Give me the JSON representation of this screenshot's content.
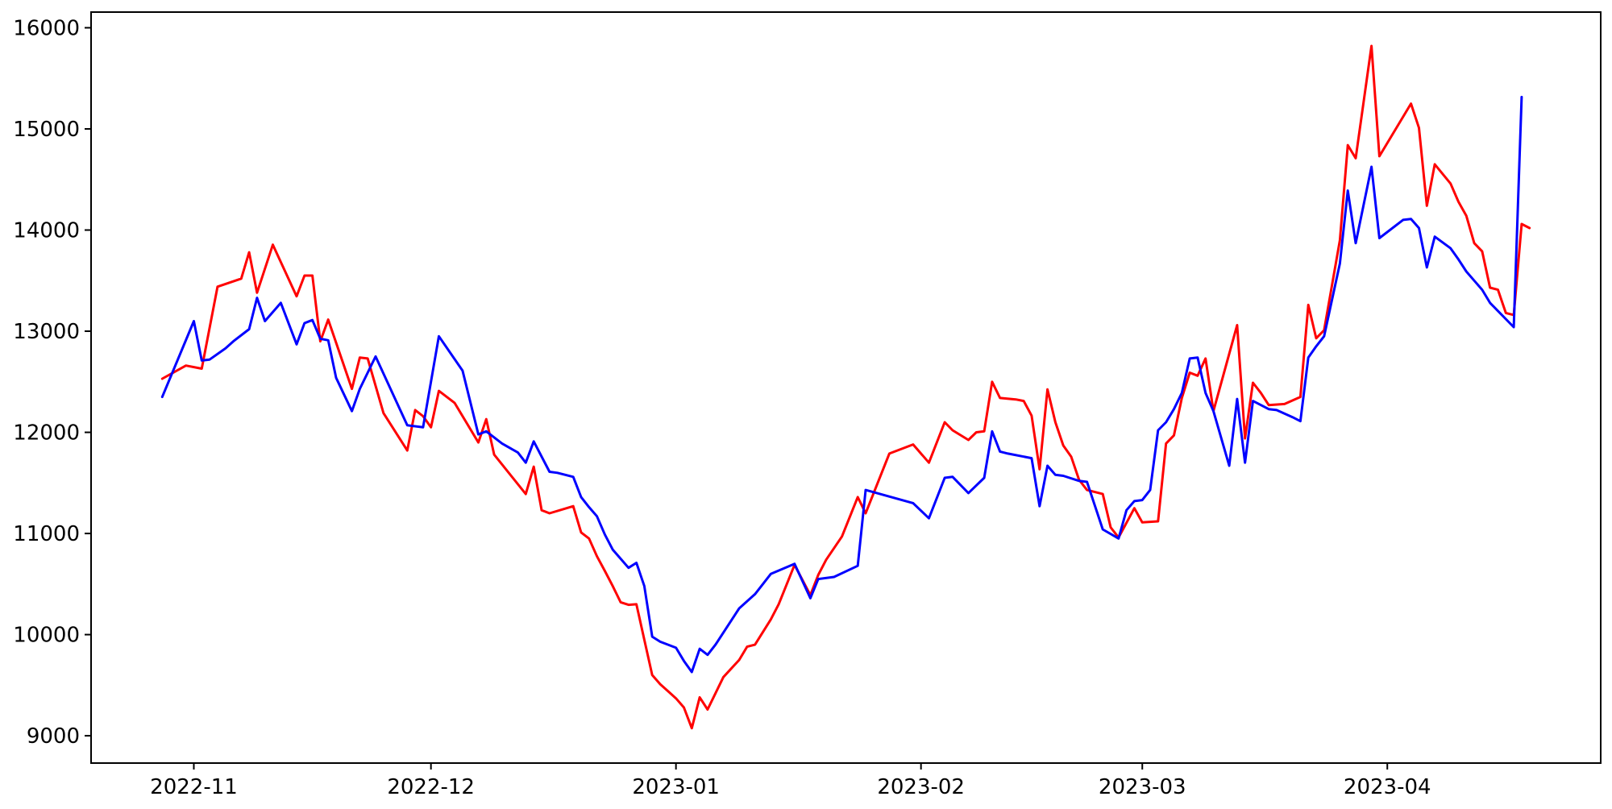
{
  "figure": {
    "background": "#ffffff",
    "frame_color": "#000000"
  },
  "chart_data": {
    "type": "line",
    "title": "",
    "xlabel": "",
    "ylabel": "",
    "grid": false,
    "legend": null,
    "xlim": [
      "2022-10-19",
      "2023-04-28"
    ],
    "ylim": [
      8730,
      16155
    ],
    "y_ticks": [
      9000,
      10000,
      11000,
      12000,
      13000,
      14000,
      15000,
      16000
    ],
    "x_ticks": [
      {
        "label": "2022-11",
        "date": "2022-11-01"
      },
      {
        "label": "2022-12",
        "date": "2022-12-01"
      },
      {
        "label": "2023-01",
        "date": "2023-01-01"
      },
      {
        "label": "2023-02",
        "date": "2023-02-01"
      },
      {
        "label": "2023-03",
        "date": "2023-03-01"
      },
      {
        "label": "2023-04",
        "date": "2023-04-01"
      }
    ],
    "series": [
      {
        "name": "red-series",
        "color": "#ff0000",
        "points": [
          [
            "2022-10-28",
            12530
          ],
          [
            "2022-10-31",
            12660
          ],
          [
            "2022-11-02",
            12630
          ],
          [
            "2022-11-04",
            13440
          ],
          [
            "2022-11-07",
            13520
          ],
          [
            "2022-11-08",
            13780
          ],
          [
            "2022-11-09",
            13380
          ],
          [
            "2022-11-11",
            13855
          ],
          [
            "2022-11-14",
            13345
          ],
          [
            "2022-11-15",
            13550
          ],
          [
            "2022-11-16",
            13550
          ],
          [
            "2022-11-17",
            12900
          ],
          [
            "2022-11-18",
            13115
          ],
          [
            "2022-11-21",
            12430
          ],
          [
            "2022-11-22",
            12740
          ],
          [
            "2022-11-23",
            12730
          ],
          [
            "2022-11-25",
            12190
          ],
          [
            "2022-11-28",
            11820
          ],
          [
            "2022-11-29",
            12220
          ],
          [
            "2022-11-30",
            12160
          ],
          [
            "2022-12-01",
            12050
          ],
          [
            "2022-12-02",
            12410
          ],
          [
            "2022-12-04",
            12290
          ],
          [
            "2022-12-07",
            11900
          ],
          [
            "2022-12-08",
            12130
          ],
          [
            "2022-12-09",
            11780
          ],
          [
            "2022-12-13",
            11390
          ],
          [
            "2022-12-14",
            11660
          ],
          [
            "2022-12-15",
            11230
          ],
          [
            "2022-12-16",
            11200
          ],
          [
            "2022-12-19",
            11270
          ],
          [
            "2022-12-20",
            11010
          ],
          [
            "2022-12-21",
            10950
          ],
          [
            "2022-12-22",
            10775
          ],
          [
            "2022-12-23",
            10630
          ],
          [
            "2022-12-24",
            10480
          ],
          [
            "2022-12-25",
            10320
          ],
          [
            "2022-12-26",
            10295
          ],
          [
            "2022-12-27",
            10300
          ],
          [
            "2022-12-28",
            9950
          ],
          [
            "2022-12-29",
            9600
          ],
          [
            "2022-12-30",
            9510
          ],
          [
            "2022-12-31",
            9440
          ],
          [
            "2023-01-01",
            9370
          ],
          [
            "2023-01-02",
            9280
          ],
          [
            "2023-01-03",
            9075
          ],
          [
            "2023-01-04",
            9380
          ],
          [
            "2023-01-05",
            9260
          ],
          [
            "2023-01-07",
            9580
          ],
          [
            "2023-01-09",
            9750
          ],
          [
            "2023-01-10",
            9880
          ],
          [
            "2023-01-11",
            9900
          ],
          [
            "2023-01-13",
            10150
          ],
          [
            "2023-01-14",
            10300
          ],
          [
            "2023-01-16",
            10690
          ],
          [
            "2023-01-18",
            10390
          ],
          [
            "2023-01-19",
            10590
          ],
          [
            "2023-01-20",
            10740
          ],
          [
            "2023-01-22",
            10970
          ],
          [
            "2023-01-24",
            11360
          ],
          [
            "2023-01-25",
            11200
          ],
          [
            "2023-01-28",
            11790
          ],
          [
            "2023-01-31",
            11880
          ],
          [
            "2023-02-02",
            11700
          ],
          [
            "2023-02-04",
            12100
          ],
          [
            "2023-02-05",
            12020
          ],
          [
            "2023-02-07",
            11925
          ],
          [
            "2023-02-08",
            12000
          ],
          [
            "2023-02-09",
            12010
          ],
          [
            "2023-02-10",
            12500
          ],
          [
            "2023-02-11",
            12340
          ],
          [
            "2023-02-13",
            12325
          ],
          [
            "2023-02-14",
            12310
          ],
          [
            "2023-02-15",
            12165
          ],
          [
            "2023-02-16",
            11635
          ],
          [
            "2023-02-17",
            12425
          ],
          [
            "2023-02-18",
            12100
          ],
          [
            "2023-02-19",
            11870
          ],
          [
            "2023-02-20",
            11760
          ],
          [
            "2023-02-21",
            11530
          ],
          [
            "2023-02-22",
            11430
          ],
          [
            "2023-02-24",
            11390
          ],
          [
            "2023-02-25",
            11060
          ],
          [
            "2023-02-26",
            10960
          ],
          [
            "2023-02-28",
            11250
          ],
          [
            "2023-03-01",
            11110
          ],
          [
            "2023-03-03",
            11120
          ],
          [
            "2023-03-04",
            11890
          ],
          [
            "2023-03-05",
            11970
          ],
          [
            "2023-03-06",
            12340
          ],
          [
            "2023-03-07",
            12590
          ],
          [
            "2023-03-08",
            12560
          ],
          [
            "2023-03-09",
            12730
          ],
          [
            "2023-03-10",
            12210
          ],
          [
            "2023-03-13",
            13060
          ],
          [
            "2023-03-14",
            11940
          ],
          [
            "2023-03-15",
            12490
          ],
          [
            "2023-03-16",
            12390
          ],
          [
            "2023-03-17",
            12270
          ],
          [
            "2023-03-19",
            12280
          ],
          [
            "2023-03-21",
            12350
          ],
          [
            "2023-03-22",
            13260
          ],
          [
            "2023-03-23",
            12930
          ],
          [
            "2023-03-24",
            13010
          ],
          [
            "2023-03-26",
            13900
          ],
          [
            "2023-03-27",
            14840
          ],
          [
            "2023-03-28",
            14710
          ],
          [
            "2023-03-30",
            15820
          ],
          [
            "2023-03-31",
            14730
          ],
          [
            "2023-04-04",
            15250
          ],
          [
            "2023-04-05",
            15010
          ],
          [
            "2023-04-06",
            14240
          ],
          [
            "2023-04-07",
            14650
          ],
          [
            "2023-04-09",
            14460
          ],
          [
            "2023-04-10",
            14280
          ],
          [
            "2023-04-11",
            14140
          ],
          [
            "2023-04-12",
            13870
          ],
          [
            "2023-04-13",
            13790
          ],
          [
            "2023-04-14",
            13430
          ],
          [
            "2023-04-15",
            13410
          ],
          [
            "2023-04-16",
            13180
          ],
          [
            "2023-04-17",
            13160
          ],
          [
            "2023-04-18",
            14060
          ],
          [
            "2023-04-19",
            14020
          ]
        ]
      },
      {
        "name": "blue-series",
        "color": "#0000ff",
        "points": [
          [
            "2022-10-28",
            12350
          ],
          [
            "2022-11-01",
            13100
          ],
          [
            "2022-11-02",
            12710
          ],
          [
            "2022-11-03",
            12720
          ],
          [
            "2022-11-05",
            12830
          ],
          [
            "2022-11-06",
            12900
          ],
          [
            "2022-11-08",
            13020
          ],
          [
            "2022-11-09",
            13330
          ],
          [
            "2022-11-10",
            13100
          ],
          [
            "2022-11-12",
            13280
          ],
          [
            "2022-11-14",
            12870
          ],
          [
            "2022-11-15",
            13080
          ],
          [
            "2022-11-16",
            13110
          ],
          [
            "2022-11-17",
            12925
          ],
          [
            "2022-11-18",
            12910
          ],
          [
            "2022-11-19",
            12540
          ],
          [
            "2022-11-21",
            12210
          ],
          [
            "2022-11-22",
            12430
          ],
          [
            "2022-11-24",
            12750
          ],
          [
            "2022-11-28",
            12070
          ],
          [
            "2022-11-30",
            12050
          ],
          [
            "2022-12-02",
            12950
          ],
          [
            "2022-12-05",
            12610
          ],
          [
            "2022-12-07",
            11980
          ],
          [
            "2022-12-08",
            12010
          ],
          [
            "2022-12-10",
            11890
          ],
          [
            "2022-12-12",
            11800
          ],
          [
            "2022-12-13",
            11700
          ],
          [
            "2022-12-14",
            11910
          ],
          [
            "2022-12-16",
            11610
          ],
          [
            "2022-12-17",
            11600
          ],
          [
            "2022-12-19",
            11560
          ],
          [
            "2022-12-20",
            11360
          ],
          [
            "2022-12-21",
            11260
          ],
          [
            "2022-12-22",
            11170
          ],
          [
            "2022-12-23",
            10990
          ],
          [
            "2022-12-24",
            10840
          ],
          [
            "2022-12-25",
            10750
          ],
          [
            "2022-12-26",
            10660
          ],
          [
            "2022-12-27",
            10710
          ],
          [
            "2022-12-28",
            10480
          ],
          [
            "2022-12-29",
            9980
          ],
          [
            "2022-12-30",
            9930
          ],
          [
            "2023-01-01",
            9870
          ],
          [
            "2023-01-02",
            9740
          ],
          [
            "2023-01-03",
            9630
          ],
          [
            "2023-01-04",
            9860
          ],
          [
            "2023-01-05",
            9800
          ],
          [
            "2023-01-06",
            9900
          ],
          [
            "2023-01-09",
            10260
          ],
          [
            "2023-01-11",
            10400
          ],
          [
            "2023-01-13",
            10600
          ],
          [
            "2023-01-16",
            10700
          ],
          [
            "2023-01-18",
            10360
          ],
          [
            "2023-01-19",
            10550
          ],
          [
            "2023-01-21",
            10570
          ],
          [
            "2023-01-24",
            10680
          ],
          [
            "2023-01-25",
            11430
          ],
          [
            "2023-01-31",
            11300
          ],
          [
            "2023-02-02",
            11150
          ],
          [
            "2023-02-04",
            11550
          ],
          [
            "2023-02-05",
            11560
          ],
          [
            "2023-02-07",
            11400
          ],
          [
            "2023-02-09",
            11550
          ],
          [
            "2023-02-10",
            12010
          ],
          [
            "2023-02-11",
            11810
          ],
          [
            "2023-02-12",
            11790
          ],
          [
            "2023-02-15",
            11745
          ],
          [
            "2023-02-16",
            11270
          ],
          [
            "2023-02-17",
            11670
          ],
          [
            "2023-02-18",
            11580
          ],
          [
            "2023-02-19",
            11570
          ],
          [
            "2023-02-21",
            11520
          ],
          [
            "2023-02-22",
            11510
          ],
          [
            "2023-02-24",
            11040
          ],
          [
            "2023-02-26",
            10950
          ],
          [
            "2023-02-27",
            11230
          ],
          [
            "2023-02-28",
            11320
          ],
          [
            "2023-03-01",
            11330
          ],
          [
            "2023-03-02",
            11430
          ],
          [
            "2023-03-03",
            12020
          ],
          [
            "2023-03-04",
            12100
          ],
          [
            "2023-03-05",
            12230
          ],
          [
            "2023-03-06",
            12390
          ],
          [
            "2023-03-07",
            12730
          ],
          [
            "2023-03-08",
            12740
          ],
          [
            "2023-03-09",
            12390
          ],
          [
            "2023-03-10",
            12210
          ],
          [
            "2023-03-12",
            11670
          ],
          [
            "2023-03-13",
            12330
          ],
          [
            "2023-03-14",
            11700
          ],
          [
            "2023-03-15",
            12310
          ],
          [
            "2023-03-17",
            12230
          ],
          [
            "2023-03-18",
            12220
          ],
          [
            "2023-03-20",
            12150
          ],
          [
            "2023-03-21",
            12110
          ],
          [
            "2023-03-22",
            12740
          ],
          [
            "2023-03-23",
            12850
          ],
          [
            "2023-03-24",
            12950
          ],
          [
            "2023-03-26",
            13670
          ],
          [
            "2023-03-27",
            14390
          ],
          [
            "2023-03-28",
            13870
          ],
          [
            "2023-03-30",
            14625
          ],
          [
            "2023-03-31",
            13920
          ],
          [
            "2023-04-03",
            14100
          ],
          [
            "2023-04-04",
            14110
          ],
          [
            "2023-04-05",
            14020
          ],
          [
            "2023-04-06",
            13630
          ],
          [
            "2023-04-07",
            13935
          ],
          [
            "2023-04-09",
            13820
          ],
          [
            "2023-04-10",
            13710
          ],
          [
            "2023-04-11",
            13590
          ],
          [
            "2023-04-12",
            13500
          ],
          [
            "2023-04-13",
            13410
          ],
          [
            "2023-04-14",
            13280
          ],
          [
            "2023-04-15",
            13200
          ],
          [
            "2023-04-17",
            13040
          ],
          [
            "2023-04-18",
            15315
          ]
        ]
      }
    ]
  }
}
